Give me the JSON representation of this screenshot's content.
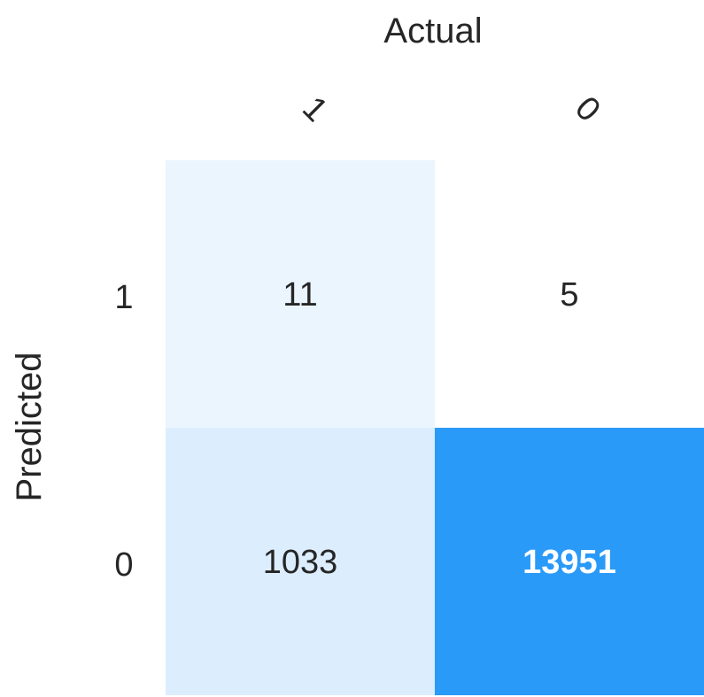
{
  "chart_data": {
    "type": "heatmap",
    "title": "",
    "xlabel": "Actual",
    "ylabel": "Predicted",
    "x_categories": [
      "1",
      "0"
    ],
    "y_categories": [
      "1",
      "0"
    ],
    "values": [
      [
        11,
        5
      ],
      [
        1033,
        13951
      ]
    ],
    "colormap": {
      "low": "#ffffff",
      "high": "#2a9af9"
    },
    "text_colors": {
      "dark": "#262626",
      "light": "#ffffff"
    }
  }
}
